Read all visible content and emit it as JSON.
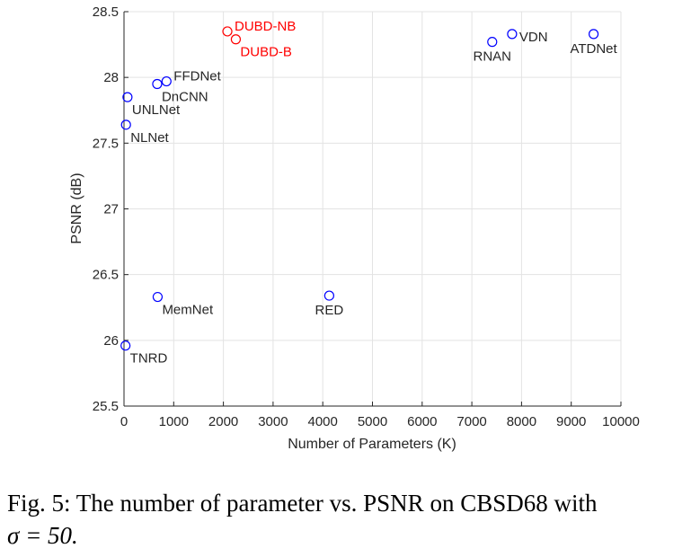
{
  "chart_data": {
    "type": "scatter",
    "xlabel": "Number of Parameters (K)",
    "ylabel": "PSNR (dB)",
    "xlim": [
      0,
      10000
    ],
    "ylim": [
      25.5,
      28.5
    ],
    "xticks": [
      "0",
      "1000",
      "2000",
      "3000",
      "4000",
      "5000",
      "6000",
      "7000",
      "8000",
      "9000",
      "10000"
    ],
    "yticks": [
      "25.5",
      "26",
      "26.5",
      "27",
      "27.5",
      "28",
      "28.5"
    ],
    "grid": true,
    "colors": {
      "baseline": "#0000ff",
      "highlight": "#ff0000"
    },
    "points": [
      {
        "label": "DUBD-NB",
        "x": 2080,
        "y": 28.35,
        "group": "highlight",
        "anchor": "right-up"
      },
      {
        "label": "DUBD-B",
        "x": 2250,
        "y": 28.29,
        "group": "highlight",
        "anchor": "right-down"
      },
      {
        "label": "FFDNet",
        "x": 855,
        "y": 27.97,
        "group": "baseline",
        "anchor": "right-up"
      },
      {
        "label": "DnCNN",
        "x": 668,
        "y": 27.95,
        "group": "baseline",
        "anchor": "right-down"
      },
      {
        "label": "UNLNet",
        "x": 70,
        "y": 27.85,
        "group": "baseline",
        "anchor": "right-down"
      },
      {
        "label": "NLNet",
        "x": 40,
        "y": 27.64,
        "group": "baseline",
        "anchor": "right-down"
      },
      {
        "label": "MemNet",
        "x": 677,
        "y": 26.33,
        "group": "baseline",
        "anchor": "right-down"
      },
      {
        "label": "RED",
        "x": 4130,
        "y": 26.34,
        "group": "baseline",
        "anchor": "center-down"
      },
      {
        "label": "TNRD",
        "x": 30,
        "y": 25.96,
        "group": "baseline",
        "anchor": "right-down"
      },
      {
        "label": "RNAN",
        "x": 7410,
        "y": 28.27,
        "group": "baseline",
        "anchor": "center-down"
      },
      {
        "label": "VDN",
        "x": 7810,
        "y": 28.33,
        "group": "baseline",
        "anchor": "right-center"
      },
      {
        "label": "ATDNet",
        "x": 9450,
        "y": 28.33,
        "group": "baseline",
        "anchor": "center-down"
      }
    ]
  },
  "caption": {
    "main": "Fig. 5: The number of parameter vs. PSNR on CBSD68 with",
    "math": "σ = 50."
  }
}
